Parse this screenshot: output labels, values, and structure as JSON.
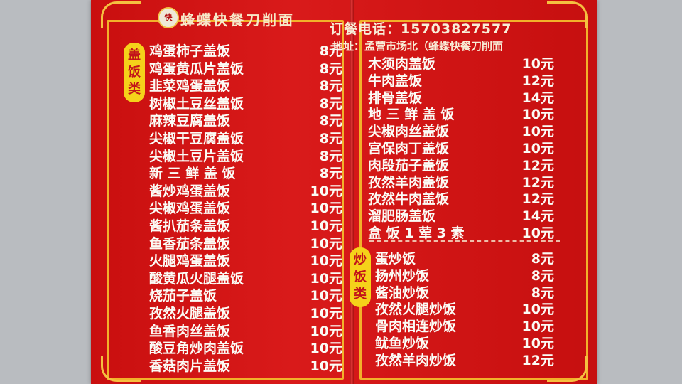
{
  "header": {
    "logo_text": "快",
    "shop_name": "蜂蝶快餐刀削面",
    "phone": "订餐电话：15703827577",
    "address": "地址：孟营市场北（蜂蝶快餐刀削面"
  },
  "sections": {
    "gaifan_label": "盖饭类",
    "chaofan_label": "炒饭类"
  },
  "left_items": [
    {
      "name": "鸡蛋柿子盖饭",
      "price": "8元"
    },
    {
      "name": "鸡蛋黄瓜片盖饭",
      "price": "8元"
    },
    {
      "name": "韭菜鸡蛋盖饭",
      "price": "8元"
    },
    {
      "name": "树椒土豆丝盖饭",
      "price": "8元"
    },
    {
      "name": "麻辣豆腐盖饭",
      "price": "8元"
    },
    {
      "name": "尖椒干豆腐盖饭",
      "price": "8元"
    },
    {
      "name": "尖椒土豆片盖饭",
      "price": "8元"
    },
    {
      "name": "新 三 鲜 盖 饭",
      "price": "8元"
    },
    {
      "name": "酱炒鸡蛋盖饭",
      "price": "10元"
    },
    {
      "name": "尖椒鸡蛋盖饭",
      "price": "10元"
    },
    {
      "name": "酱扒茄条盖饭",
      "price": "10元"
    },
    {
      "name": "鱼香茄条盖饭",
      "price": "10元"
    },
    {
      "name": "火腿鸡蛋盖饭",
      "price": "10元"
    },
    {
      "name": "酸黄瓜火腿盖饭",
      "price": "10元"
    },
    {
      "name": "烧茄子盖饭",
      "price": "10元"
    },
    {
      "name": "孜然火腿盖饭",
      "price": "10元"
    },
    {
      "name": "鱼香肉丝盖饭",
      "price": "10元"
    },
    {
      "name": "酸豆角炒肉盖饭",
      "price": "10元"
    },
    {
      "name": "香菇肉片盖饭",
      "price": "10元"
    }
  ],
  "right_items": [
    {
      "name": "木须肉盖饭",
      "price": "10元"
    },
    {
      "name": "牛肉盖饭",
      "price": "12元"
    },
    {
      "name": "排骨盖饭",
      "price": "14元"
    },
    {
      "name": "地 三 鲜 盖 饭",
      "price": "10元"
    },
    {
      "name": "尖椒肉丝盖饭",
      "price": "10元"
    },
    {
      "name": "宫保肉丁盖饭",
      "price": "10元"
    },
    {
      "name": "肉段茄子盖饭",
      "price": "12元"
    },
    {
      "name": "孜然羊肉盖饭",
      "price": "12元"
    },
    {
      "name": "孜然牛肉盖饭",
      "price": "12元"
    },
    {
      "name": "溜肥肠盖饭",
      "price": "14元"
    },
    {
      "name": "盒 饭 1 荤 3 素",
      "price": "10元"
    }
  ],
  "chaofan_items": [
    {
      "name": "蛋炒饭",
      "price": "8元"
    },
    {
      "name": "扬州炒饭",
      "price": "8元"
    },
    {
      "name": "酱油炒饭",
      "price": "8元"
    },
    {
      "name": "孜然火腿炒饭",
      "price": "10元"
    },
    {
      "name": "骨肉相连炒饭",
      "price": "10元"
    },
    {
      "name": "鱿鱼炒饭",
      "price": "10元"
    },
    {
      "name": "孜然羊肉炒饭",
      "price": "12元"
    }
  ]
}
